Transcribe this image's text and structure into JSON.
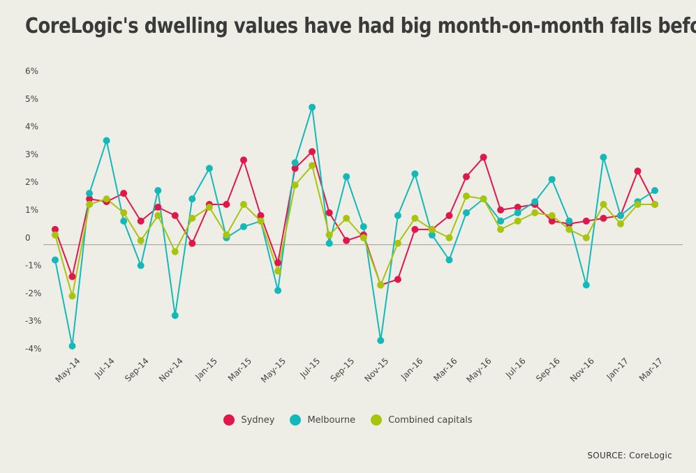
{
  "chart_data": {
    "type": "line",
    "title": "CoreLogic's dwelling values have had big month-on-month falls before",
    "source": "SOURCE: CoreLogic",
    "x": [
      "Apr-14",
      "May-14",
      "Jun-14",
      "Jul-14",
      "Aug-14",
      "Sep-14",
      "Oct-14",
      "Nov-14",
      "Dec-14",
      "Jan-15",
      "Feb-15",
      "Mar-15",
      "Apr-15",
      "May-15",
      "Jun-15",
      "Jul-15",
      "Aug-15",
      "Sep-15",
      "Oct-15",
      "Nov-15",
      "Dec-15",
      "Jan-16",
      "Feb-16",
      "Mar-16",
      "Apr-16",
      "May-16",
      "Jun-16",
      "Jul-16",
      "Aug-16",
      "Sep-16",
      "Oct-16",
      "Nov-16",
      "Dec-16",
      "Jan-17",
      "Feb-17",
      "Mar-17"
    ],
    "tick_labels": [
      "May-14",
      "Jul-14",
      "Sep-14",
      "Nov-14",
      "Jan-15",
      "Mar-15",
      "May-15",
      "Jul-15",
      "Sep-15",
      "Nov-15",
      "Jan-16",
      "Mar-16",
      "May-16",
      "Jul-16",
      "Sep-16",
      "Nov-16",
      "Jan-17",
      "Mar-17"
    ],
    "y_tick_labels": [
      "-4%",
      "-3%",
      "-2%",
      "-1%",
      "0",
      "1%",
      "2%",
      "3%",
      "4%",
      "5%",
      "6%"
    ],
    "ylim": [
      -4,
      6
    ],
    "series": [
      {
        "name": "Sydney",
        "color": "#e0174a",
        "values": [
          0.3,
          -1.4,
          1.4,
          1.3,
          1.6,
          0.6,
          1.1,
          0.8,
          -0.2,
          1.2,
          1.2,
          2.8,
          0.8,
          -0.9,
          2.5,
          3.1,
          0.9,
          -0.1,
          0.1,
          -1.7,
          -1.5,
          0.3,
          0.3,
          0.8,
          2.2,
          2.9,
          1.0,
          1.1,
          1.2,
          0.6,
          0.5,
          0.6,
          0.7,
          0.8,
          2.4,
          1.2
        ]
      },
      {
        "name": "Melbourne",
        "color": "#13b9b9",
        "values": [
          -0.8,
          -3.9,
          1.6,
          3.5,
          0.6,
          -1.0,
          1.7,
          -2.8,
          1.4,
          2.5,
          0.0,
          0.4,
          0.6,
          -1.9,
          2.7,
          4.7,
          -0.2,
          2.2,
          0.4,
          -3.7,
          0.8,
          2.3,
          0.1,
          -0.8,
          0.9,
          1.4,
          0.6,
          0.9,
          1.3,
          2.1,
          0.6,
          -1.7,
          2.9,
          0.8,
          1.3,
          1.7
        ]
      },
      {
        "name": "Combined capitals",
        "color": "#a9c40d",
        "values": [
          0.1,
          -2.1,
          1.2,
          1.4,
          0.9,
          -0.1,
          0.8,
          -0.5,
          0.7,
          1.1,
          0.1,
          1.2,
          0.6,
          -1.2,
          1.9,
          2.6,
          0.1,
          0.7,
          0.0,
          -1.7,
          -0.2,
          0.7,
          0.3,
          0.0,
          1.5,
          1.4,
          0.3,
          0.6,
          0.9,
          0.8,
          0.3,
          0.0,
          1.2,
          0.5,
          1.2,
          1.2
        ]
      }
    ],
    "legend": "bottom-center",
    "grid": false
  }
}
